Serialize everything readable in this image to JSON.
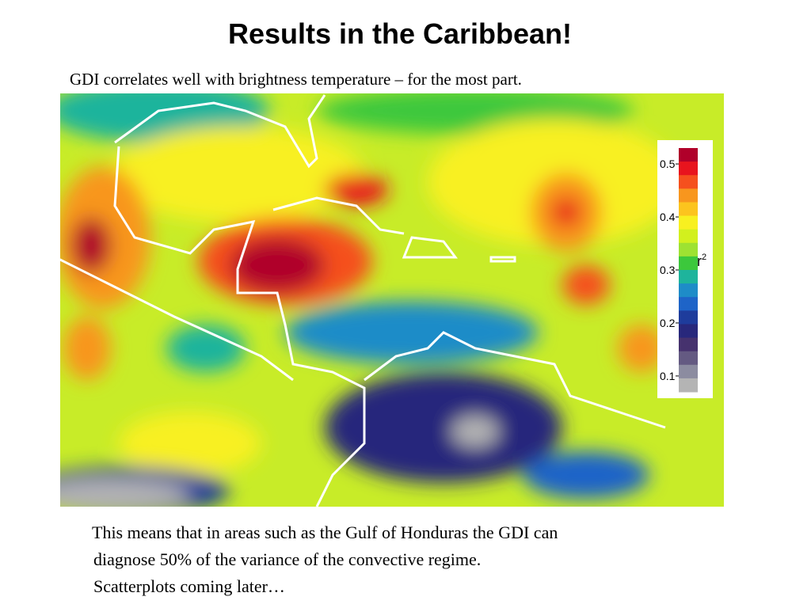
{
  "header": {
    "title": "Results in the Caribbean!",
    "subtitle": "GDI correlates well with brightness temperature – for the most part."
  },
  "colorbar": {
    "label": "r",
    "label_superscript": "2",
    "ticks": [
      0.5,
      0.4,
      0.3,
      0.2,
      0.1
    ],
    "range": [
      0.07,
      0.53
    ],
    "colors": [
      "#b0002a",
      "#e8141e",
      "#f5501e",
      "#f8961e",
      "#fcc41e",
      "#f8f020",
      "#d2f01e",
      "#9ee232",
      "#3cc83c",
      "#1eb49c",
      "#1e8cc8",
      "#1e64c8",
      "#1e3c9c",
      "#28287c",
      "#46326e",
      "#645a82",
      "#8c8ca0",
      "#b4b4b4"
    ]
  },
  "body": {
    "lines": [
      "This means that in areas such as the Gulf of Honduras the GDI can",
      "diagnose 50% of the variance of the convective regime.",
      "Scatterplots coming later…"
    ]
  }
}
